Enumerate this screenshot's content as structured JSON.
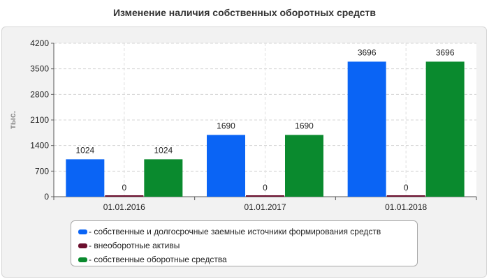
{
  "chart_data": {
    "type": "bar",
    "title": "Изменение наличия собственных оборотных средств",
    "ylabel": "тыс.",
    "xlabel": "",
    "categories": [
      "01.01.2016",
      "01.01.2017",
      "01.01.2018"
    ],
    "ylim": [
      0,
      4200
    ],
    "yticks": [
      0,
      700,
      1400,
      2100,
      2800,
      3500,
      4200
    ],
    "grid": true,
    "legend_position": "bottom",
    "series": [
      {
        "name": "- собственные и долгосрочные заемные источники формирования средств",
        "color": "#0a64f5",
        "values": [
          1024,
          1690,
          3696
        ]
      },
      {
        "name": "- внеоборотные активы",
        "color": "#6b0f2e",
        "values": [
          0,
          0,
          0
        ]
      },
      {
        "name": "- собственные оборотные средства",
        "color": "#0a8a2e",
        "values": [
          1024,
          1690,
          3696
        ]
      }
    ]
  }
}
